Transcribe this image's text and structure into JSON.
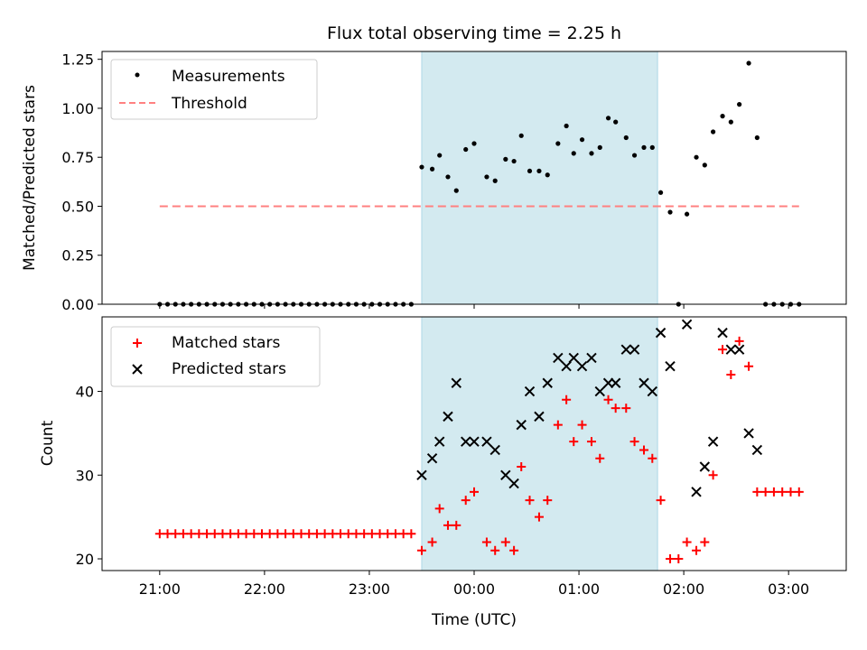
{
  "figure_title": "Flux total observing time = 2.25 h",
  "chart_data": [
    {
      "type": "scatter",
      "panel": "top",
      "title": "Flux total observing time = 2.25 h",
      "ylabel": "Matched/Predicted stars",
      "xlabel": "",
      "x_unit": "hours UTC (>24 = next day)",
      "xlim": [
        20.45,
        27.55
      ],
      "ylim": [
        0,
        1.29
      ],
      "yticks": [
        0,
        0.25,
        0.5,
        0.75,
        1.0,
        1.25
      ],
      "ytick_labels": [
        "0.00",
        "0.25",
        "0.50",
        "0.75",
        "1.00",
        "1.25"
      ],
      "shaded_interval": [
        23.5,
        25.75
      ],
      "shade_color": "#d3eaf0",
      "legend": {
        "position": "top-left",
        "entries": [
          "Measurements",
          "Threshold"
        ]
      },
      "series": [
        {
          "name": "Measurements",
          "marker": "dot",
          "color": "#000000",
          "points": [
            [
              21.0,
              0
            ],
            [
              21.075,
              0
            ],
            [
              21.15,
              0
            ],
            [
              21.225,
              0
            ],
            [
              21.3,
              0
            ],
            [
              21.375,
              0
            ],
            [
              21.45,
              0
            ],
            [
              21.525,
              0
            ],
            [
              21.6,
              0
            ],
            [
              21.675,
              0
            ],
            [
              21.75,
              0
            ],
            [
              21.825,
              0
            ],
            [
              21.9,
              0
            ],
            [
              21.975,
              0
            ],
            [
              22.05,
              0
            ],
            [
              22.125,
              0
            ],
            [
              22.2,
              0
            ],
            [
              22.275,
              0
            ],
            [
              22.35,
              0
            ],
            [
              22.425,
              0
            ],
            [
              22.5,
              0
            ],
            [
              22.575,
              0
            ],
            [
              22.65,
              0
            ],
            [
              22.725,
              0
            ],
            [
              22.8,
              0
            ],
            [
              22.875,
              0
            ],
            [
              22.95,
              0
            ],
            [
              23.025,
              0
            ],
            [
              23.1,
              0
            ],
            [
              23.175,
              0
            ],
            [
              23.25,
              0
            ],
            [
              23.325,
              0
            ],
            [
              23.4,
              0
            ],
            [
              23.5,
              0.7
            ],
            [
              23.6,
              0.69
            ],
            [
              23.67,
              0.76
            ],
            [
              23.75,
              0.65
            ],
            [
              23.83,
              0.58
            ],
            [
              23.92,
              0.79
            ],
            [
              24.0,
              0.82
            ],
            [
              24.12,
              0.65
            ],
            [
              24.2,
              0.63
            ],
            [
              24.3,
              0.74
            ],
            [
              24.38,
              0.73
            ],
            [
              24.45,
              0.86
            ],
            [
              24.53,
              0.68
            ],
            [
              24.62,
              0.68
            ],
            [
              24.7,
              0.66
            ],
            [
              24.8,
              0.82
            ],
            [
              24.88,
              0.91
            ],
            [
              24.95,
              0.77
            ],
            [
              25.03,
              0.84
            ],
            [
              25.12,
              0.77
            ],
            [
              25.2,
              0.8
            ],
            [
              25.28,
              0.95
            ],
            [
              25.35,
              0.93
            ],
            [
              25.45,
              0.85
            ],
            [
              25.53,
              0.76
            ],
            [
              25.62,
              0.8
            ],
            [
              25.7,
              0.8
            ],
            [
              25.78,
              0.57
            ],
            [
              25.87,
              0.47
            ],
            [
              25.95,
              0
            ],
            [
              26.03,
              0.46
            ],
            [
              26.12,
              0.75
            ],
            [
              26.2,
              0.71
            ],
            [
              26.28,
              0.88
            ],
            [
              26.37,
              0.96
            ],
            [
              26.45,
              0.93
            ],
            [
              26.53,
              1.02
            ],
            [
              26.62,
              1.23
            ],
            [
              26.7,
              0.85
            ],
            [
              26.78,
              0
            ],
            [
              26.86,
              0
            ],
            [
              26.94,
              0
            ],
            [
              27.02,
              0
            ],
            [
              27.1,
              0
            ]
          ]
        },
        {
          "name": "Threshold",
          "type": "line",
          "style": "dashed",
          "color": "#ff8080",
          "x": [
            21.0,
            27.1
          ],
          "y": [
            0.5,
            0.5
          ]
        }
      ]
    },
    {
      "type": "scatter",
      "panel": "bottom",
      "title": "",
      "ylabel": "Count",
      "xlabel": "Time (UTC)",
      "x_unit": "hours UTC (>24 = next day)",
      "xlim": [
        20.45,
        27.55
      ],
      "ylim": [
        18.6,
        48.9
      ],
      "yticks": [
        20,
        30,
        40
      ],
      "ytick_labels": [
        "20",
        "30",
        "40"
      ],
      "xticks": [
        21,
        22,
        23,
        24,
        25,
        26,
        27
      ],
      "xtick_labels": [
        "21:00",
        "22:00",
        "23:00",
        "00:00",
        "01:00",
        "02:00",
        "03:00"
      ],
      "shaded_interval": [
        23.5,
        25.75
      ],
      "shade_color": "#d3eaf0",
      "legend": {
        "position": "top-left",
        "entries": [
          "Matched stars",
          "Predicted stars"
        ]
      },
      "series": [
        {
          "name": "Matched stars",
          "marker": "plus",
          "color": "#ff0000",
          "points": [
            [
              21.0,
              23
            ],
            [
              21.075,
              23
            ],
            [
              21.15,
              23
            ],
            [
              21.225,
              23
            ],
            [
              21.3,
              23
            ],
            [
              21.375,
              23
            ],
            [
              21.45,
              23
            ],
            [
              21.525,
              23
            ],
            [
              21.6,
              23
            ],
            [
              21.675,
              23
            ],
            [
              21.75,
              23
            ],
            [
              21.825,
              23
            ],
            [
              21.9,
              23
            ],
            [
              21.975,
              23
            ],
            [
              22.05,
              23
            ],
            [
              22.125,
              23
            ],
            [
              22.2,
              23
            ],
            [
              22.275,
              23
            ],
            [
              22.35,
              23
            ],
            [
              22.425,
              23
            ],
            [
              22.5,
              23
            ],
            [
              22.575,
              23
            ],
            [
              22.65,
              23
            ],
            [
              22.725,
              23
            ],
            [
              22.8,
              23
            ],
            [
              22.875,
              23
            ],
            [
              22.95,
              23
            ],
            [
              23.025,
              23
            ],
            [
              23.1,
              23
            ],
            [
              23.175,
              23
            ],
            [
              23.25,
              23
            ],
            [
              23.325,
              23
            ],
            [
              23.4,
              23
            ],
            [
              23.5,
              21
            ],
            [
              23.6,
              22
            ],
            [
              23.67,
              26
            ],
            [
              23.75,
              24
            ],
            [
              23.83,
              24
            ],
            [
              23.92,
              27
            ],
            [
              24.0,
              28
            ],
            [
              24.12,
              22
            ],
            [
              24.2,
              21
            ],
            [
              24.3,
              22
            ],
            [
              24.38,
              21
            ],
            [
              24.45,
              31
            ],
            [
              24.53,
              27
            ],
            [
              24.62,
              25
            ],
            [
              24.7,
              27
            ],
            [
              24.8,
              36
            ],
            [
              24.88,
              39
            ],
            [
              24.95,
              34
            ],
            [
              25.03,
              36
            ],
            [
              25.12,
              34
            ],
            [
              25.2,
              32
            ],
            [
              25.28,
              39
            ],
            [
              25.35,
              38
            ],
            [
              25.45,
              38
            ],
            [
              25.53,
              34
            ],
            [
              25.62,
              33
            ],
            [
              25.7,
              32
            ],
            [
              25.78,
              27
            ],
            [
              25.87,
              20
            ],
            [
              25.95,
              20
            ],
            [
              26.03,
              22
            ],
            [
              26.12,
              21
            ],
            [
              26.2,
              22
            ],
            [
              26.28,
              30
            ],
            [
              26.37,
              45
            ],
            [
              26.45,
              42
            ],
            [
              26.53,
              46
            ],
            [
              26.62,
              43
            ],
            [
              26.7,
              28
            ],
            [
              26.78,
              28
            ],
            [
              26.86,
              28
            ],
            [
              26.94,
              28
            ],
            [
              27.02,
              28
            ],
            [
              27.1,
              28
            ]
          ]
        },
        {
          "name": "Predicted stars",
          "marker": "x",
          "color": "#000000",
          "points": [
            [
              23.5,
              30
            ],
            [
              23.6,
              32
            ],
            [
              23.67,
              34
            ],
            [
              23.75,
              37
            ],
            [
              23.83,
              41
            ],
            [
              23.92,
              34
            ],
            [
              24.0,
              34
            ],
            [
              24.12,
              34
            ],
            [
              24.2,
              33
            ],
            [
              24.3,
              30
            ],
            [
              24.38,
              29
            ],
            [
              24.45,
              36
            ],
            [
              24.53,
              40
            ],
            [
              24.62,
              37
            ],
            [
              24.7,
              41
            ],
            [
              24.8,
              44
            ],
            [
              24.88,
              43
            ],
            [
              24.95,
              44
            ],
            [
              25.03,
              43
            ],
            [
              25.12,
              44
            ],
            [
              25.2,
              40
            ],
            [
              25.28,
              41
            ],
            [
              25.35,
              41
            ],
            [
              25.45,
              45
            ],
            [
              25.53,
              45
            ],
            [
              25.62,
              41
            ],
            [
              25.7,
              40
            ],
            [
              25.78,
              47
            ],
            [
              25.87,
              43
            ],
            [
              26.03,
              48
            ],
            [
              26.12,
              28
            ],
            [
              26.2,
              31
            ],
            [
              26.28,
              34
            ],
            [
              26.37,
              47
            ],
            [
              26.45,
              45
            ],
            [
              26.53,
              45
            ],
            [
              26.62,
              35
            ],
            [
              26.7,
              33
            ]
          ]
        }
      ]
    }
  ]
}
